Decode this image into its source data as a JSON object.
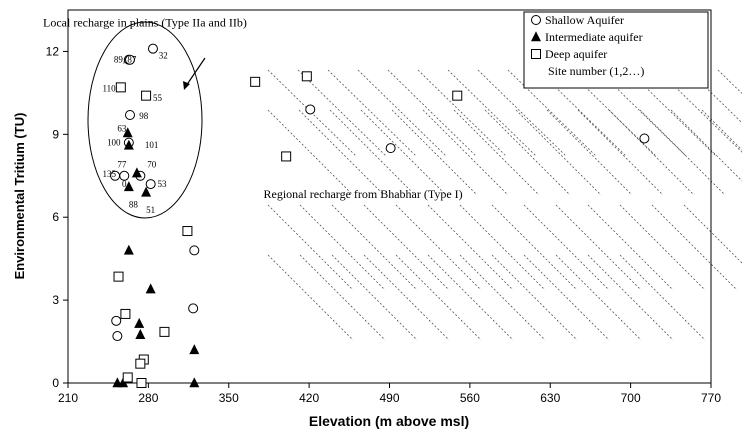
{
  "chart_data": {
    "type": "scatter",
    "title": "",
    "xlabel": "Elevation (m above msl)",
    "ylabel": "Environmental Tritium (TU)",
    "xlim": [
      210,
      770
    ],
    "ylim": [
      0,
      13.5
    ],
    "xticks": [
      210,
      280,
      350,
      420,
      490,
      560,
      630,
      700,
      770
    ],
    "xtick_labels": [
      "210",
      "280",
      "350",
      "420",
      "490",
      "560",
      "630",
      "700",
      "770"
    ],
    "yticks": [
      0,
      3,
      6,
      9,
      12
    ],
    "ytick_labels": [
      "0",
      "3",
      "6",
      "9",
      "12"
    ],
    "grid": false,
    "legend_position": "top-right",
    "legend": [
      {
        "marker": "circle",
        "label": "Shallow Aquifer"
      },
      {
        "marker": "triangle",
        "label": "Intermediate aquifer"
      },
      {
        "marker": "square",
        "label": "Deep aquifer"
      },
      {
        "marker": "none",
        "label": "Site number (1,2…)"
      }
    ],
    "series": [
      {
        "name": "Shallow Aquifer",
        "marker": "circle",
        "points": [
          {
            "x": 263,
            "y": 11.7
          },
          {
            "x": 264,
            "y": 11.7
          },
          {
            "x": 284,
            "y": 12.1
          },
          {
            "x": 264,
            "y": 9.7
          },
          {
            "x": 263,
            "y": 8.7
          },
          {
            "x": 251,
            "y": 7.5
          },
          {
            "x": 259,
            "y": 7.5
          },
          {
            "x": 273,
            "y": 7.5
          },
          {
            "x": 282,
            "y": 7.2
          },
          {
            "x": 421,
            "y": 9.9
          },
          {
            "x": 491,
            "y": 8.5
          },
          {
            "x": 712,
            "y": 8.85
          },
          {
            "x": 320,
            "y": 4.8
          },
          {
            "x": 319,
            "y": 2.7
          },
          {
            "x": 252,
            "y": 2.25
          },
          {
            "x": 253,
            "y": 1.7
          }
        ]
      },
      {
        "name": "Intermediate aquifer",
        "marker": "triangle",
        "points": [
          {
            "x": 262,
            "y": 9.05
          },
          {
            "x": 263,
            "y": 8.6
          },
          {
            "x": 270,
            "y": 7.6
          },
          {
            "x": 263,
            "y": 7.1
          },
          {
            "x": 278,
            "y": 6.9
          },
          {
            "x": 263,
            "y": 4.8
          },
          {
            "x": 282,
            "y": 3.4
          },
          {
            "x": 272,
            "y": 2.15
          },
          {
            "x": 273,
            "y": 1.75
          },
          {
            "x": 320,
            "y": 1.2
          },
          {
            "x": 253,
            "y": 0.0
          },
          {
            "x": 258,
            "y": 0.0
          },
          {
            "x": 320,
            "y": 0.0
          }
        ]
      },
      {
        "name": "Deep aquifer",
        "marker": "square",
        "points": [
          {
            "x": 256,
            "y": 10.7
          },
          {
            "x": 278,
            "y": 10.4
          },
          {
            "x": 373,
            "y": 10.9
          },
          {
            "x": 418,
            "y": 11.1
          },
          {
            "x": 400,
            "y": 8.2
          },
          {
            "x": 549,
            "y": 10.4
          },
          {
            "x": 314,
            "y": 5.5
          },
          {
            "x": 254,
            "y": 3.85
          },
          {
            "x": 260,
            "y": 2.5
          },
          {
            "x": 294,
            "y": 1.85
          },
          {
            "x": 276,
            "y": 0.85
          },
          {
            "x": 273,
            "y": 0.7
          },
          {
            "x": 262,
            "y": 0.2
          },
          {
            "x": 274,
            "y": 0.0
          }
        ]
      }
    ],
    "site_labels": [
      {
        "text": "89, 87",
        "x": 250,
        "y": 11.6
      },
      {
        "text": "32",
        "x": 289,
        "y": 11.75
      },
      {
        "text": "110",
        "x": 240,
        "y": 10.55
      },
      {
        "text": "55",
        "x": 284,
        "y": 10.2
      },
      {
        "text": "98",
        "x": 272,
        "y": 9.55
      },
      {
        "text": "63",
        "x": 253,
        "y": 9.1
      },
      {
        "text": "100",
        "x": 244,
        "y": 8.6
      },
      {
        "text": "101",
        "x": 277,
        "y": 8.5
      },
      {
        "text": "77",
        "x": 253,
        "y": 7.8
      },
      {
        "text": "70",
        "x": 279,
        "y": 7.8
      },
      {
        "text": "135",
        "x": 240,
        "y": 7.45
      },
      {
        "text": "0",
        "x": 257,
        "y": 7.1
      },
      {
        "text": "53",
        "x": 288,
        "y": 7.1
      },
      {
        "text": "88",
        "x": 263,
        "y": 6.35
      },
      {
        "text": "51",
        "x": 278,
        "y": 6.15
      }
    ],
    "annotations": [
      {
        "text": "Local  recharge in plains (Type IIa and IIb)",
        "x": 277,
        "y": 12.9
      },
      {
        "text": "Regional recharge from Bhabhar (Type I)",
        "x": 467,
        "y": 6.7
      }
    ]
  }
}
